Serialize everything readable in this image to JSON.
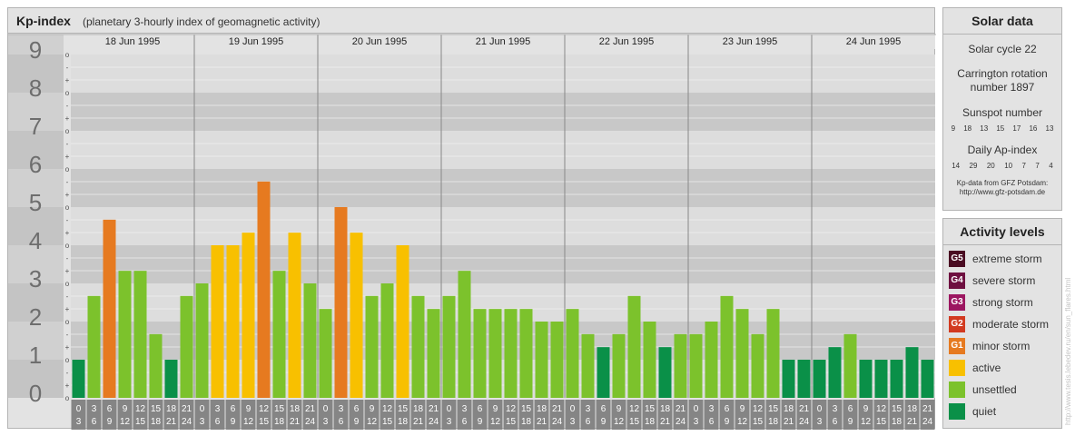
{
  "header": {
    "title": "Kp-index",
    "subtitle": "(planetary 3-hourly index of geomagnetic activity)"
  },
  "chart_data": {
    "type": "bar",
    "title": "Kp-index",
    "subtitle": "(planetary 3-hourly index of geomagnetic activity)",
    "ylim": [
      0,
      9
    ],
    "y_ticks": [
      "0",
      "1",
      "2",
      "3",
      "4",
      "5",
      "6",
      "7",
      "8",
      "9"
    ],
    "y_minor_marks": [
      "o",
      "+",
      "-"
    ],
    "days": [
      "18 Jun 1995",
      "19 Jun 1995",
      "20 Jun 1995",
      "21 Jun 1995",
      "22 Jun 1995",
      "23 Jun 1995",
      "24 Jun 1995"
    ],
    "interval_start_labels": [
      "0",
      "3",
      "6",
      "9",
      "12",
      "15",
      "18",
      "21"
    ],
    "interval_end_labels": [
      "3",
      "6",
      "9",
      "12",
      "15",
      "18",
      "21",
      "24"
    ],
    "values": [
      1.0,
      2.67,
      4.67,
      3.33,
      3.33,
      1.67,
      1.0,
      2.67,
      3.0,
      4.0,
      4.0,
      4.33,
      5.67,
      3.33,
      4.33,
      3.0,
      2.33,
      5.0,
      4.33,
      2.67,
      3.0,
      4.0,
      2.67,
      2.33,
      2.67,
      3.33,
      2.33,
      2.33,
      2.33,
      2.33,
      2.0,
      2.0,
      2.33,
      1.67,
      1.33,
      1.67,
      2.67,
      2.0,
      1.33,
      1.67,
      1.67,
      2.0,
      2.67,
      2.33,
      1.67,
      2.33,
      1.0,
      1.0,
      1.0,
      1.33,
      1.67,
      1.0,
      1.0,
      1.0,
      1.33,
      1.0
    ],
    "grid": true,
    "legend_position": "right"
  },
  "solar": {
    "title": "Solar data",
    "cycle": "Solar cycle 22",
    "carrington_line1": "Carrington rotation",
    "carrington_line2": "number 1897",
    "sunspot_label": "Sunspot number",
    "sunspot_values": [
      "9",
      "18",
      "13",
      "15",
      "17",
      "16",
      "13"
    ],
    "ap_label": "Daily Ap-index",
    "ap_values": [
      "14",
      "29",
      "20",
      "10",
      "7",
      "7",
      "4"
    ],
    "note_line1": "Kp-data from GFZ Potsdam:",
    "note_line2": "http://www.gfz-potsdam.de"
  },
  "activity": {
    "title": "Activity levels",
    "levels": [
      {
        "badge": "G5",
        "label": "extreme storm",
        "color": "#4a0c22"
      },
      {
        "badge": "G4",
        "label": "severe storm",
        "color": "#6e1040"
      },
      {
        "badge": "G3",
        "label": "strong storm",
        "color": "#9c1660"
      },
      {
        "badge": "G2",
        "label": "moderate storm",
        "color": "#d23a20"
      },
      {
        "badge": "G1",
        "label": "minor storm",
        "color": "#e67a20"
      },
      {
        "badge": "",
        "label": "active",
        "color": "#f8c000"
      },
      {
        "badge": "",
        "label": "unsettled",
        "color": "#7cc22c"
      },
      {
        "badge": "",
        "label": "quiet",
        "color": "#0a9048"
      }
    ]
  },
  "watermark": "http://www.tesis.lebedev.ru/en/sun_flares.html"
}
